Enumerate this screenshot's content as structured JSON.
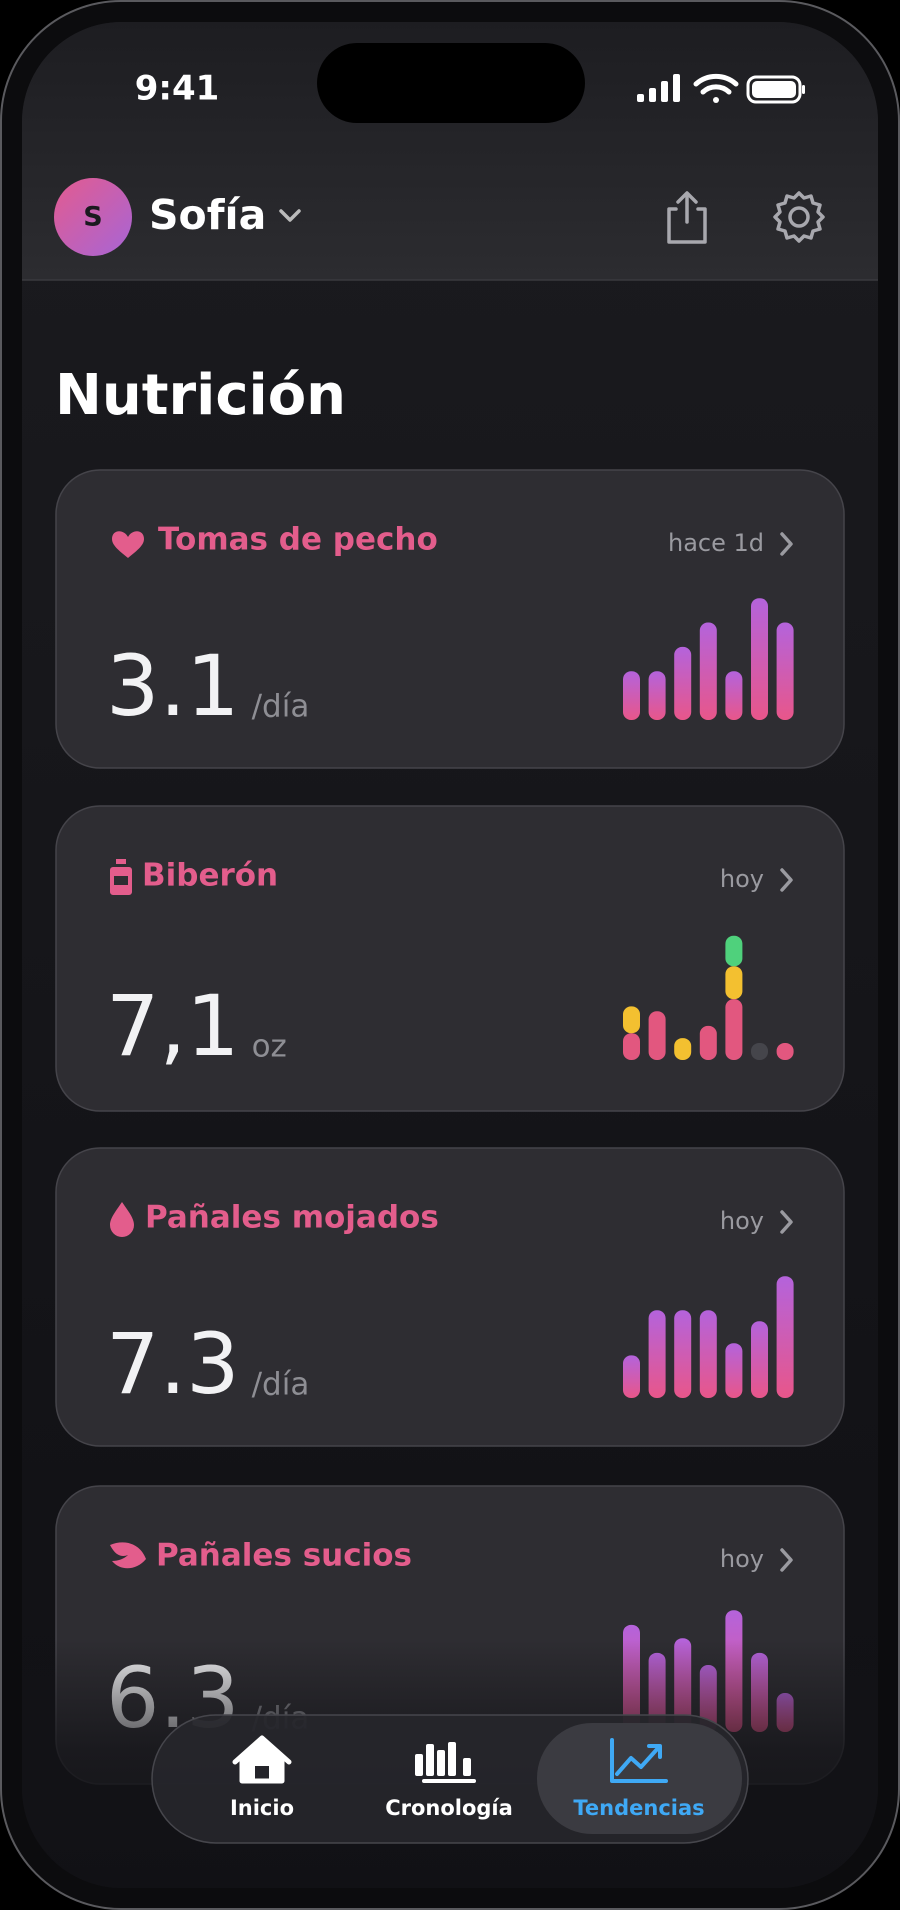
{
  "status": {
    "time": "9:41"
  },
  "header": {
    "avatar_initial": "S",
    "name": "Sofía"
  },
  "section_title": "Nutrición",
  "cards": [
    {
      "title": "Tomas de pecho",
      "time": "hace 1d",
      "value": "3.1",
      "unit": "/día",
      "colors": [
        "#b463dc",
        "#e8568a"
      ],
      "values": [
        40,
        40,
        60,
        80,
        40,
        100,
        80
      ]
    },
    {
      "title": "Biberón",
      "time": "hoy",
      "value": "7,1",
      "unit": "oz",
      "series": [
        {
          "color": "#e2577f",
          "values": [
            22,
            40,
            0,
            28,
            50,
            0,
            14
          ]
        },
        {
          "color": "#f3c030",
          "values": [
            22,
            0,
            18,
            0,
            27,
            0,
            0
          ]
        },
        {
          "color": "#4fd17c",
          "values": [
            0,
            0,
            0,
            0,
            25,
            0,
            0
          ]
        },
        {
          "color": "#45454b",
          "values": [
            0,
            0,
            0,
            0,
            0,
            14,
            0
          ]
        }
      ]
    },
    {
      "title": "Pañales mojados",
      "time": "hoy",
      "value": "7.3",
      "unit": "/día",
      "colors": [
        "#b463dc",
        "#e8568a"
      ],
      "values": [
        35,
        72,
        72,
        72,
        45,
        63,
        100
      ]
    },
    {
      "title": "Pañales sucios",
      "time": "hoy",
      "value": "6.3",
      "unit": "/día",
      "colors": [
        "#b463dc",
        "#e8568a"
      ],
      "values": [
        88,
        65,
        77,
        55,
        100,
        65,
        32
      ]
    }
  ],
  "nav": {
    "active": 2,
    "items": [
      {
        "label": "Inicio"
      },
      {
        "label": "Cronología"
      },
      {
        "label": "Tendencias"
      }
    ]
  }
}
